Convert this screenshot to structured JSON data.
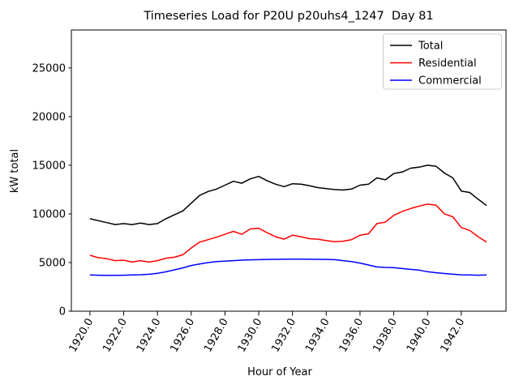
{
  "chart_data": {
    "type": "line",
    "title": "Timeseries Load for P20U p20uhs4_1247  Day 81",
    "xlabel": "Hour of Year",
    "ylabel": "kW total",
    "x_start": 1920.0,
    "x_step": 0.5,
    "xlim": [
      1918.9,
      1944.65
    ],
    "ylim": [
      0,
      28900
    ],
    "grid": false,
    "legend_position": "upper right",
    "xtick_values": [
      1920,
      1922,
      1924,
      1926,
      1928,
      1930,
      1932,
      1934,
      1936,
      1938,
      1940,
      1942
    ],
    "xtick_labels": [
      "1920.0",
      "1922.0",
      "1924.0",
      "1926.0",
      "1928.0",
      "1930.0",
      "1932.0",
      "1934.0",
      "1936.0",
      "1938.0",
      "1940.0",
      "1942.0"
    ],
    "ytick_values": [
      0,
      5000,
      10000,
      15000,
      20000,
      25000
    ],
    "ytick_labels": [
      "0",
      "5000",
      "10000",
      "15000",
      "20000",
      "25000"
    ],
    "series": [
      {
        "name": "Total",
        "color": "#000000",
        "values": [
          9500,
          9300,
          9100,
          8900,
          9000,
          8900,
          9050,
          8900,
          9000,
          9500,
          9900,
          10300,
          11100,
          11900,
          12300,
          12550,
          12950,
          13350,
          13150,
          13600,
          13850,
          13400,
          13050,
          12800,
          13100,
          13050,
          12900,
          12700,
          12600,
          12500,
          12450,
          12550,
          12950,
          13050,
          13700,
          13500,
          14150,
          14300,
          14700,
          14800,
          15000,
          14900,
          14200,
          13700,
          12350,
          12200,
          11500,
          10850
        ]
      },
      {
        "name": "Residential",
        "color": "#ff0000",
        "values": [
          5750,
          5500,
          5400,
          5200,
          5250,
          5050,
          5200,
          5050,
          5200,
          5450,
          5550,
          5800,
          6500,
          7100,
          7350,
          7600,
          7900,
          8200,
          7900,
          8450,
          8530,
          8060,
          7650,
          7400,
          7800,
          7650,
          7450,
          7400,
          7250,
          7150,
          7200,
          7350,
          7800,
          7950,
          9000,
          9150,
          9850,
          10250,
          10550,
          10800,
          11000,
          10900,
          10000,
          9700,
          8600,
          8300,
          7650,
          7100
        ]
      },
      {
        "name": "Commercial",
        "color": "#0000ff",
        "values": [
          3720,
          3700,
          3680,
          3680,
          3700,
          3720,
          3750,
          3800,
          3900,
          4050,
          4250,
          4450,
          4700,
          4850,
          5000,
          5100,
          5150,
          5200,
          5250,
          5280,
          5300,
          5320,
          5330,
          5340,
          5350,
          5350,
          5340,
          5330,
          5320,
          5300,
          5200,
          5100,
          4950,
          4750,
          4550,
          4500,
          4480,
          4380,
          4300,
          4220,
          4060,
          3960,
          3870,
          3800,
          3740,
          3720,
          3700,
          3720
        ]
      }
    ]
  }
}
